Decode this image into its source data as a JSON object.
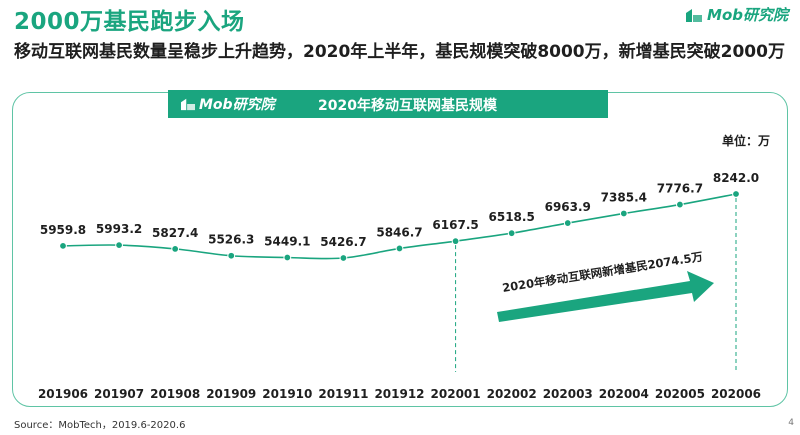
{
  "header": {
    "title": "2000万基民跑步入场",
    "brand": "Mob研究院"
  },
  "subtitle": "移动互联网基民数量呈稳步上升趋势，2020年上半年，基民规模突破8000万，新增基民突破2000万",
  "chart_header": {
    "brand": "Mob研究院",
    "title": "2020年移动互联网基民规模"
  },
  "unit_label": "单位：万",
  "chart_data": {
    "type": "line",
    "title": "2020年移动互联网基民规模",
    "unit": "单位：万",
    "categories": [
      "201906",
      "201907",
      "201908",
      "201909",
      "201910",
      "201911",
      "201912",
      "202001",
      "202002",
      "202003",
      "202004",
      "202005",
      "202006"
    ],
    "series": [
      {
        "values": [
          5959.8,
          5993.2,
          5827.4,
          5526.3,
          5449.1,
          5426.7,
          5846.7,
          6167.5,
          6518.5,
          6963.9,
          7385.4,
          7776.7,
          8242.0
        ]
      }
    ],
    "value_labels": [
      "5959.8",
      "5993.2",
      "5827.4",
      "5526.3",
      "5449.1",
      "5426.7",
      "5846.7",
      "6167.5",
      "6518.5",
      "6963.9",
      "7385.4",
      "7776.7",
      "8242.0"
    ],
    "annotation": "2020年移动互联网新增基民2074.5万",
    "colors": {
      "line": "#1aa57f",
      "marker": "#1aa57f",
      "arrow": "#1aa57f",
      "guide": "#1aa57f"
    }
  },
  "footer": {
    "source": "Source：MobTech，2019.6-2020.6",
    "page": "4"
  }
}
